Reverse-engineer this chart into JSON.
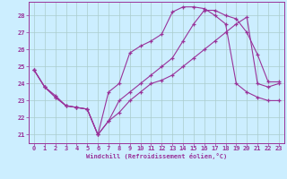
{
  "background_color": "#cceeff",
  "grid_color": "#aacccc",
  "line_color": "#993399",
  "xlabel": "Windchill (Refroidissement éolien,°C)",
  "xlabel_color": "#993399",
  "ylim": [
    20.5,
    28.8
  ],
  "xlim": [
    -0.5,
    23.5
  ],
  "yticks": [
    21,
    22,
    23,
    24,
    25,
    26,
    27,
    28
  ],
  "xticks": [
    0,
    1,
    2,
    3,
    4,
    5,
    6,
    7,
    8,
    9,
    10,
    11,
    12,
    13,
    14,
    15,
    16,
    17,
    18,
    19,
    20,
    21,
    22,
    23
  ],
  "series1_x": [
    0,
    1,
    2,
    3,
    4,
    5,
    6,
    7,
    8,
    9,
    10,
    11,
    12,
    13,
    14,
    15,
    16,
    17,
    18,
    19,
    20,
    21,
    22,
    23
  ],
  "series1_y": [
    24.8,
    23.8,
    23.3,
    22.7,
    22.6,
    22.5,
    21.0,
    21.8,
    23.0,
    23.5,
    24.0,
    24.5,
    25.0,
    25.5,
    26.5,
    27.5,
    28.3,
    28.3,
    28.0,
    27.8,
    27.0,
    25.7,
    24.1,
    24.1
  ],
  "series2_x": [
    0,
    1,
    2,
    3,
    4,
    5,
    6,
    7,
    8,
    9,
    10,
    11,
    12,
    13,
    14,
    15,
    16,
    17,
    18,
    19,
    20,
    21,
    22,
    23
  ],
  "series2_y": [
    24.8,
    23.8,
    23.2,
    22.7,
    22.6,
    22.5,
    21.0,
    23.5,
    24.0,
    25.8,
    26.2,
    26.5,
    26.9,
    28.2,
    28.5,
    28.5,
    28.4,
    28.0,
    27.5,
    24.0,
    23.5,
    23.2,
    23.0,
    23.0
  ],
  "series3_x": [
    0,
    1,
    2,
    3,
    4,
    5,
    6,
    7,
    8,
    9,
    10,
    11,
    12,
    13,
    14,
    15,
    16,
    17,
    18,
    19,
    20,
    21,
    22,
    23
  ],
  "series3_y": [
    24.8,
    23.8,
    23.2,
    22.7,
    22.6,
    22.5,
    21.0,
    21.8,
    22.3,
    23.0,
    23.5,
    24.0,
    24.2,
    24.5,
    25.0,
    25.5,
    26.0,
    26.5,
    27.0,
    27.5,
    27.9,
    24.0,
    23.8,
    24.0
  ]
}
